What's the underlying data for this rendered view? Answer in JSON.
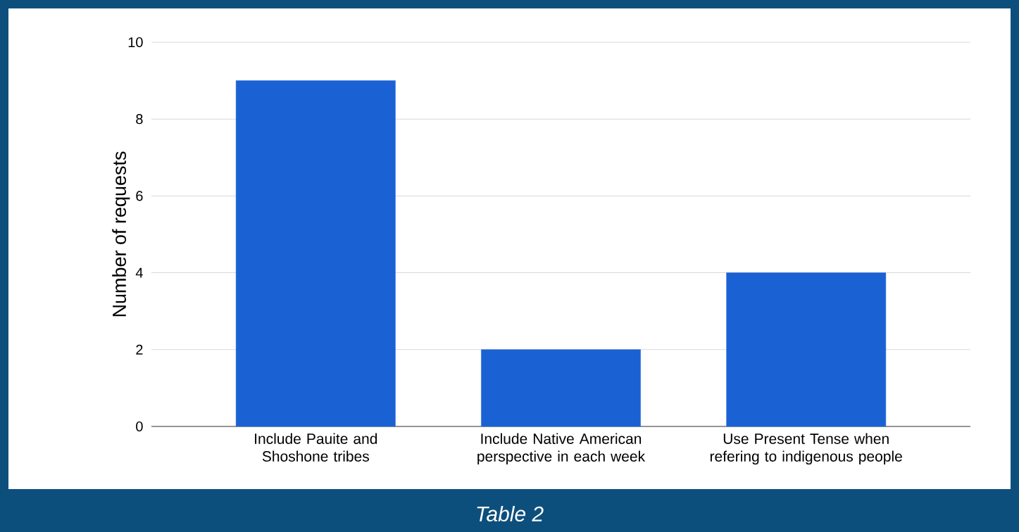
{
  "chart_data": {
    "type": "bar",
    "categories": [
      "Include Pauite and Shoshone tribes",
      "Include Native American perspective in each week",
      "Use Present Tense when refering to indigenous people"
    ],
    "values": [
      9,
      2,
      4
    ],
    "color": "#1a62d4",
    "ylabel": "Number of requests",
    "ylim": [
      0,
      10
    ],
    "yticks": [
      0,
      2,
      4,
      6,
      8,
      10
    ],
    "grid": "y",
    "annotations": [
      "Table 2"
    ]
  }
}
